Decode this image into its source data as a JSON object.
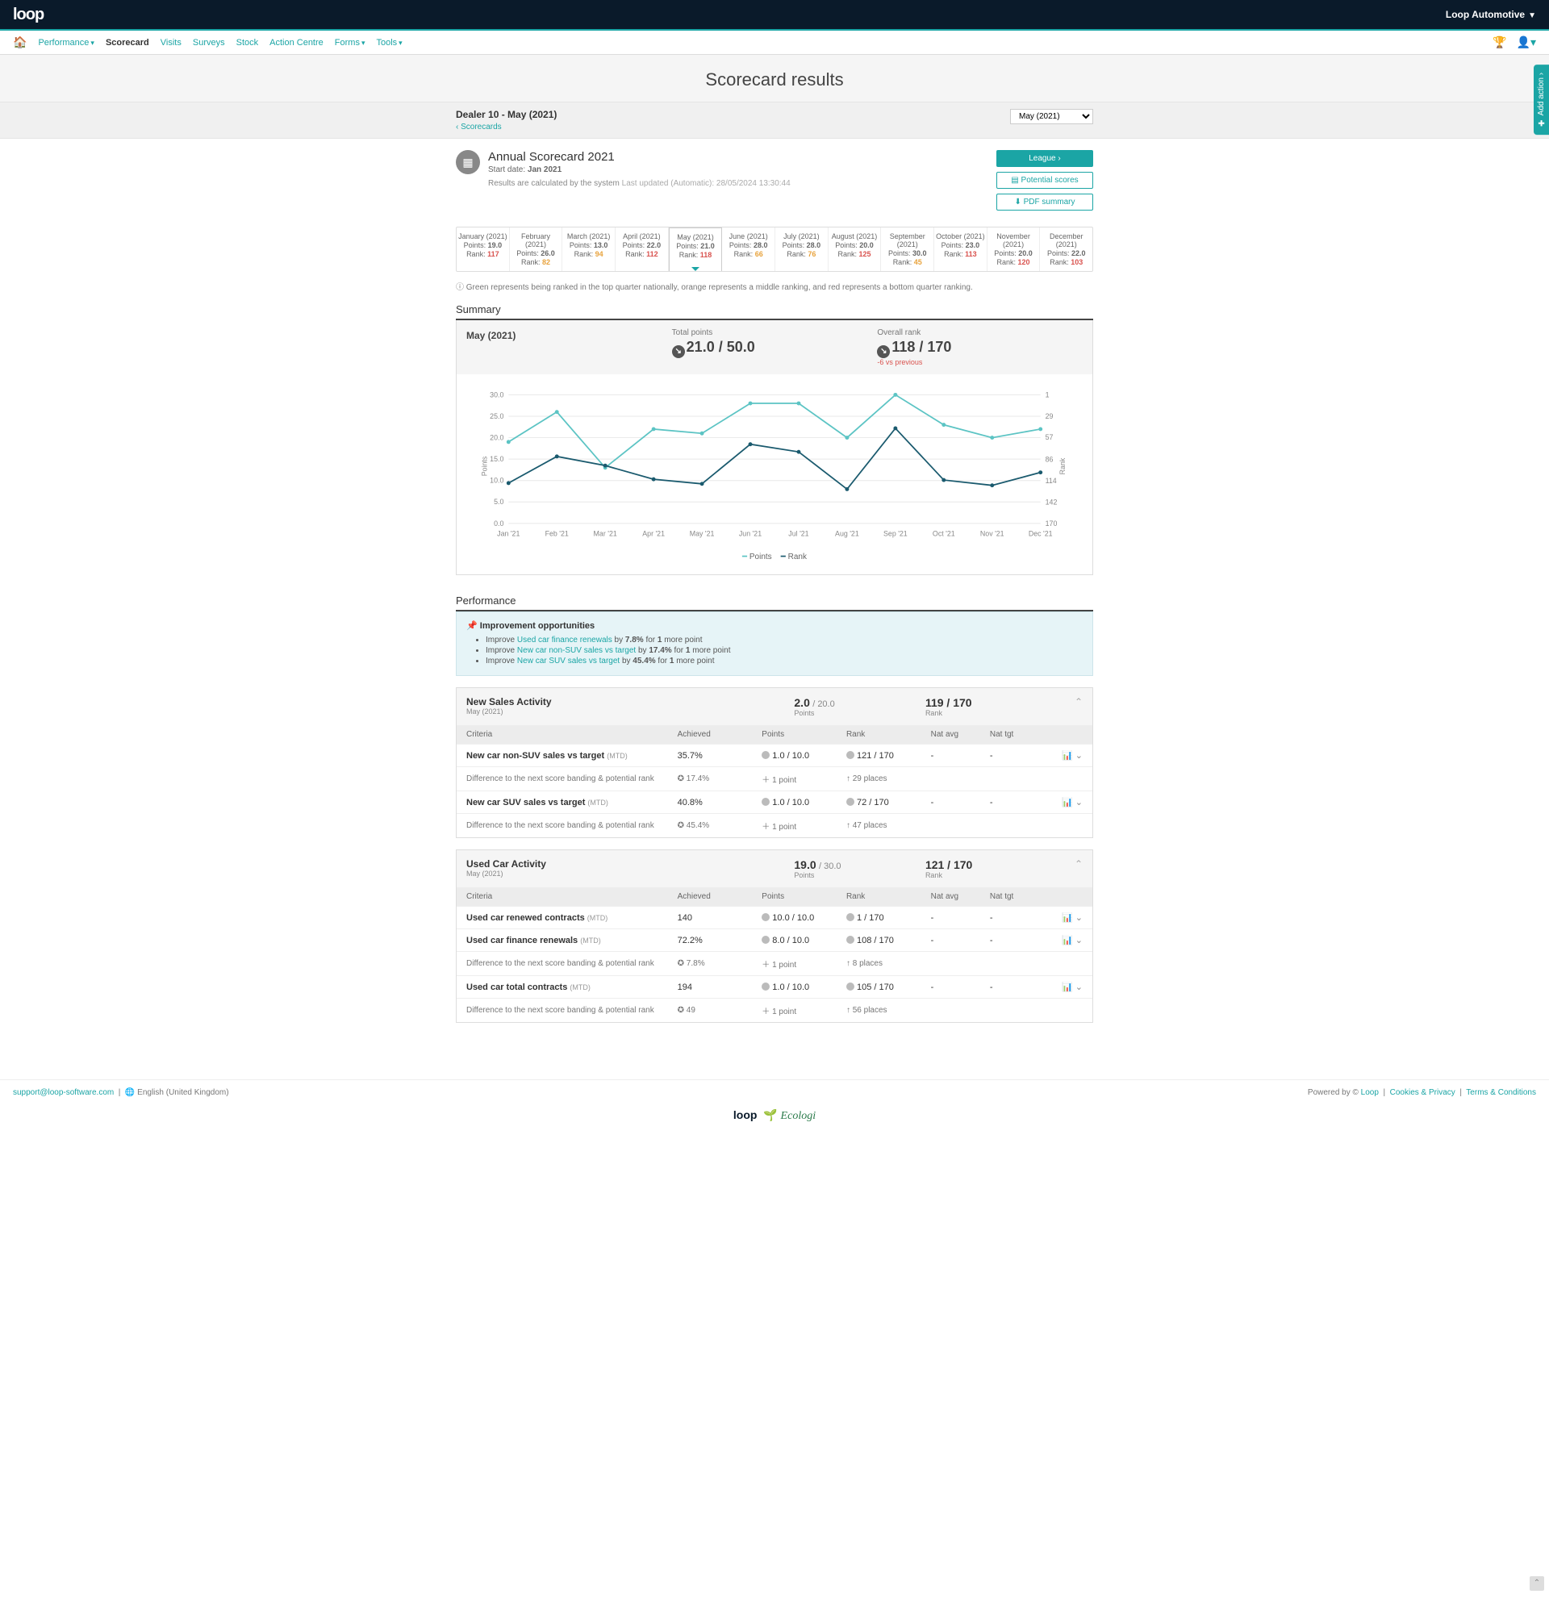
{
  "topbar": {
    "logo": "loop",
    "account": "Loop Automotive"
  },
  "nav": {
    "items": [
      {
        "label": "Performance",
        "dropdown": true
      },
      {
        "label": "Scorecard",
        "active": true
      },
      {
        "label": "Visits"
      },
      {
        "label": "Surveys"
      },
      {
        "label": "Stock"
      },
      {
        "label": "Action Centre"
      },
      {
        "label": "Forms",
        "dropdown": true
      },
      {
        "label": "Tools",
        "dropdown": true
      }
    ]
  },
  "page_title": "Scorecard results",
  "subheader": {
    "title": "Dealer 10 - May (2021)",
    "crumb": "Scorecards",
    "month_selected": "May (2021)"
  },
  "add_action": "Add action",
  "scorecard": {
    "title": "Annual Scorecard 2021",
    "start_label": "Start date:",
    "start_date": "Jan 2021",
    "calc_note": "Results are calculated by the system",
    "last_updated": "Last updated (Automatic): 28/05/2024 13:30:44",
    "buttons": {
      "league": "League",
      "potential": "Potential scores",
      "pdf": "PDF summary"
    }
  },
  "months": [
    {
      "name": "January (2021)",
      "points": "19.0",
      "rank": "117",
      "rank_class": "rank-red"
    },
    {
      "name": "February (2021)",
      "points": "26.0",
      "rank": "82",
      "rank_class": "rank-orange"
    },
    {
      "name": "March (2021)",
      "points": "13.0",
      "rank": "94",
      "rank_class": "rank-orange"
    },
    {
      "name": "April (2021)",
      "points": "22.0",
      "rank": "112",
      "rank_class": "rank-red"
    },
    {
      "name": "May (2021)",
      "points": "21.0",
      "rank": "118",
      "rank_class": "rank-red",
      "active": true
    },
    {
      "name": "June (2021)",
      "points": "28.0",
      "rank": "66",
      "rank_class": "rank-orange"
    },
    {
      "name": "July (2021)",
      "points": "28.0",
      "rank": "76",
      "rank_class": "rank-orange"
    },
    {
      "name": "August (2021)",
      "points": "20.0",
      "rank": "125",
      "rank_class": "rank-red"
    },
    {
      "name": "September (2021)",
      "points": "30.0",
      "rank": "45",
      "rank_class": "rank-orange"
    },
    {
      "name": "October (2021)",
      "points": "23.0",
      "rank": "113",
      "rank_class": "rank-red"
    },
    {
      "name": "November (2021)",
      "points": "20.0",
      "rank": "120",
      "rank_class": "rank-red"
    },
    {
      "name": "December (2021)",
      "points": "22.0",
      "rank": "103",
      "rank_class": "rank-red"
    }
  ],
  "points_label": "Points:",
  "rank_label": "Rank:",
  "legend_note": "Green represents being ranked in the top quarter nationally, orange represents a middle ranking, and red represents a bottom quarter ranking.",
  "summary": {
    "title": "Summary",
    "month": "May (2021)",
    "total_points_label": "Total points",
    "total_points": "21.0 / 50.0",
    "overall_rank_label": "Overall rank",
    "overall_rank": "118 / 170",
    "vs_previous": "-6 vs previous"
  },
  "chart": {
    "x_labels": [
      "Jan '21",
      "Feb '21",
      "Mar '21",
      "Apr '21",
      "May '21",
      "Jun '21",
      "Jul '21",
      "Aug '21",
      "Sep '21",
      "Oct '21",
      "Nov '21",
      "Dec '21"
    ],
    "y_left_ticks": [
      0,
      5,
      10,
      15,
      20,
      25,
      30
    ],
    "y_right_ticks": [
      1,
      29,
      57,
      86,
      114,
      142,
      170
    ],
    "y_left_label": "Points",
    "y_right_label": "Rank",
    "points_series": [
      19,
      26,
      13,
      22,
      21,
      28,
      28,
      20,
      30,
      23,
      20,
      22
    ],
    "rank_series": [
      117,
      82,
      94,
      112,
      118,
      66,
      76,
      125,
      45,
      113,
      120,
      103
    ],
    "points_color": "#5cc4c4",
    "rank_color": "#1a5a6e",
    "grid_color": "#e8e8e8",
    "legend_points": "Points",
    "legend_rank": "Rank"
  },
  "performance": {
    "title": "Performance",
    "improve_title": "Improvement opportunities",
    "improve_prefix": "Improve",
    "improvements": [
      {
        "metric": "Used car finance renewals",
        "by": "7.8%",
        "points": "1"
      },
      {
        "metric": "New car non-SUV sales vs target",
        "by": "17.4%",
        "points": "1"
      },
      {
        "metric": "New car SUV sales vs target",
        "by": "45.4%",
        "points": "1"
      }
    ]
  },
  "criteria_headers": {
    "criteria": "Criteria",
    "achieved": "Achieved",
    "points": "Points",
    "rank": "Rank",
    "natavg": "Nat avg",
    "nattgt": "Nat tgt"
  },
  "diff_label": "Difference to the next score banding & potential rank",
  "activities": [
    {
      "name": "New Sales Activity",
      "month": "May (2021)",
      "points": "2.0",
      "points_max": "/ 20.0",
      "points_lbl": "Points",
      "rank": "119 / 170",
      "rank_lbl": "Rank",
      "rows": [
        {
          "criteria": "New car non-SUV sales vs target",
          "mtd": "(MTD)",
          "achieved": "35.7%",
          "points": "1.0 / 10.0",
          "rank": "121 / 170",
          "natavg": "-",
          "nattgt": "-",
          "diff_ach": "17.4%",
          "diff_pts": "1 point",
          "diff_rank": "29 places"
        },
        {
          "criteria": "New car SUV sales vs target",
          "mtd": "(MTD)",
          "achieved": "40.8%",
          "points": "1.0 / 10.0",
          "rank": "72 / 170",
          "natavg": "-",
          "nattgt": "-",
          "diff_ach": "45.4%",
          "diff_pts": "1 point",
          "diff_rank": "47 places"
        }
      ]
    },
    {
      "name": "Used Car Activity",
      "month": "May (2021)",
      "points": "19.0",
      "points_max": "/ 30.0",
      "points_lbl": "Points",
      "rank": "121 / 170",
      "rank_lbl": "Rank",
      "rows": [
        {
          "criteria": "Used car renewed contracts",
          "mtd": "(MTD)",
          "achieved": "140",
          "points": "10.0 / 10.0",
          "rank": "1 / 170",
          "natavg": "-",
          "nattgt": "-"
        },
        {
          "criteria": "Used car finance renewals",
          "mtd": "(MTD)",
          "achieved": "72.2%",
          "points": "8.0 / 10.0",
          "rank": "108 / 170",
          "natavg": "-",
          "nattgt": "-",
          "diff_ach": "7.8%",
          "diff_pts": "1 point",
          "diff_rank": "8 places"
        },
        {
          "criteria": "Used car total contracts",
          "mtd": "(MTD)",
          "achieved": "194",
          "points": "1.0 / 10.0",
          "rank": "105 / 170",
          "natavg": "-",
          "nattgt": "-",
          "diff_ach": "49",
          "diff_pts": "1 point",
          "diff_rank": "56 places"
        }
      ]
    }
  ],
  "footer": {
    "email": "support@loop-software.com",
    "lang": "English (United Kingdom)",
    "powered": "Powered by ©",
    "loop": "Loop",
    "cookies": "Cookies & Privacy",
    "terms": "Terms & Conditions",
    "logo1": "loop",
    "logo2": "Ecologi"
  }
}
